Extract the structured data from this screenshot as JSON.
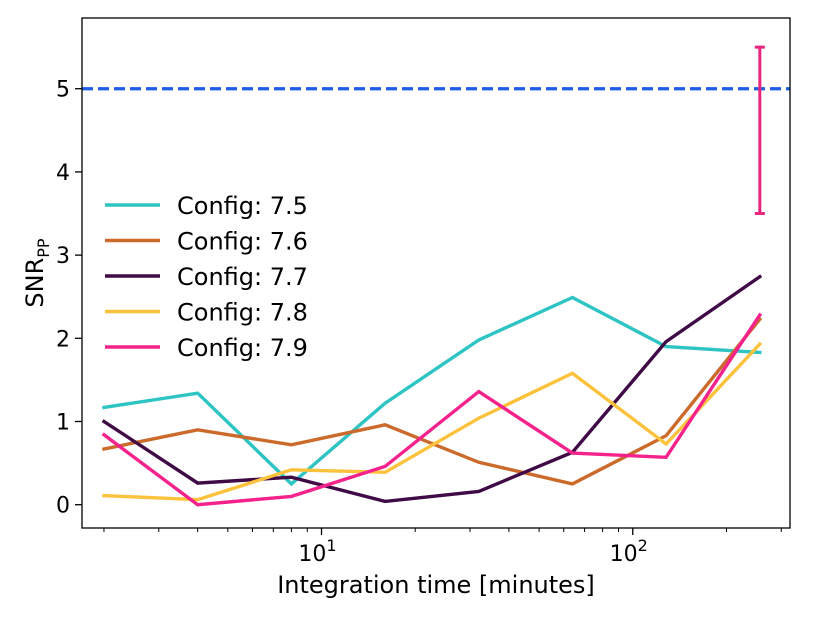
{
  "chart_data": {
    "type": "line",
    "title": "",
    "xlabel": "Integration time [minutes]",
    "ylabel": "SNR",
    "ylabel_subscript": "PP",
    "xscale": "log",
    "xlim": [
      1.7,
      320
    ],
    "ylim": [
      -0.28,
      5.85
    ],
    "xticks": [
      {
        "value": 10,
        "base": "10",
        "exp": "1"
      },
      {
        "value": 100,
        "base": "10",
        "exp": "2"
      }
    ],
    "yticks": [
      {
        "value": 0,
        "label": "0"
      },
      {
        "value": 1,
        "label": "1"
      },
      {
        "value": 2,
        "label": "2"
      },
      {
        "value": 3,
        "label": "3"
      },
      {
        "value": 4,
        "label": "4"
      },
      {
        "value": 5,
        "label": "5"
      }
    ],
    "x": [
      2,
      4,
      8,
      16,
      32,
      64,
      128,
      256
    ],
    "series": [
      {
        "name": "Config: 7.5",
        "color": "#2ec4c4",
        "values": [
          1.17,
          1.34,
          0.25,
          1.22,
          1.98,
          2.49,
          1.9,
          1.83
        ]
      },
      {
        "name": "Config: 7.6",
        "color": "#cc6a2c",
        "values": [
          0.67,
          0.9,
          0.72,
          0.96,
          0.51,
          0.25,
          0.83,
          2.23
        ]
      },
      {
        "name": "Config: 7.7",
        "color": "#3f0a45",
        "values": [
          1.0,
          0.26,
          0.33,
          0.04,
          0.16,
          0.63,
          1.96,
          2.74
        ]
      },
      {
        "name": "Config: 7.8",
        "color": "#fcc23c",
        "values": [
          0.11,
          0.06,
          0.42,
          0.39,
          1.04,
          1.58,
          0.73,
          1.93
        ]
      },
      {
        "name": "Config: 7.9",
        "color": "#f5228c",
        "values": [
          0.84,
          0.0,
          0.1,
          0.46,
          1.36,
          0.62,
          0.57,
          2.28
        ]
      }
    ],
    "threshold": {
      "y": 5,
      "color": "#1f5fe8",
      "style": "dashed"
    },
    "errorbar": {
      "x": 256,
      "y": 5,
      "low": 3.5,
      "high": 5.5,
      "color": "#e8257f"
    },
    "legend": "center-left"
  }
}
